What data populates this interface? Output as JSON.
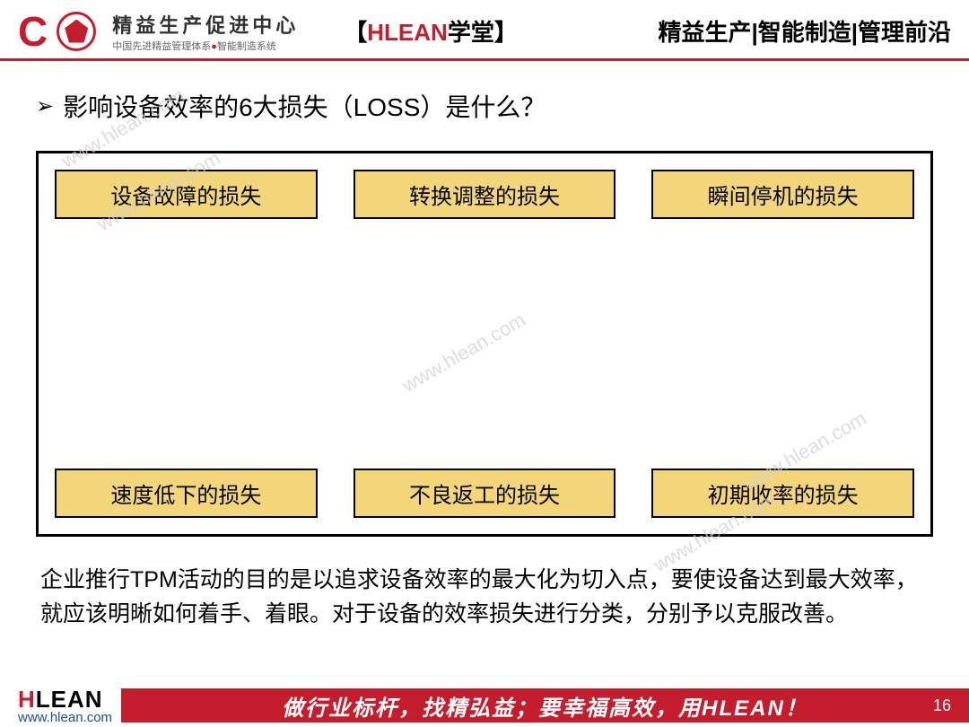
{
  "header": {
    "brand_main": "精益生产促进中心",
    "brand_sub_1": "中国先进精益管理体系",
    "brand_sub_2": "智能制造系统",
    "center_bracket_l": "【",
    "center_red": "HLEAN",
    "center_black": "学堂",
    "center_bracket_r": "】",
    "right_text": "精益生产|智能制造|管理前沿"
  },
  "content": {
    "question": "影响设备效率的6大损失（LOSS）是什么？",
    "losses": [
      "设备故障的损失",
      "转换调整的损失",
      "瞬间停机的损失",
      "速度低下的损失",
      "不良返工的损失",
      "初期收率的损失"
    ],
    "description": "企业推行TPM活动的目的是以追求设备效率的最大化为切入点，要使设备达到最大效率，就应该明晰如何着手、着眼。对于设备的效率损失进行分类，分别予以克服改善。"
  },
  "footer": {
    "logo_h": "H",
    "logo_lean": "LEAN",
    "url": "www.hlean.com",
    "slogan": "做行业标杆，找精弘益；要幸福高效，用HLEAN！",
    "page": "16"
  },
  "watermark": "www.hlean.com",
  "colors": {
    "brand_red": "#c41e2e",
    "loss_box_bg": "#f4d67a",
    "url_blue": "#1a4b9e"
  }
}
